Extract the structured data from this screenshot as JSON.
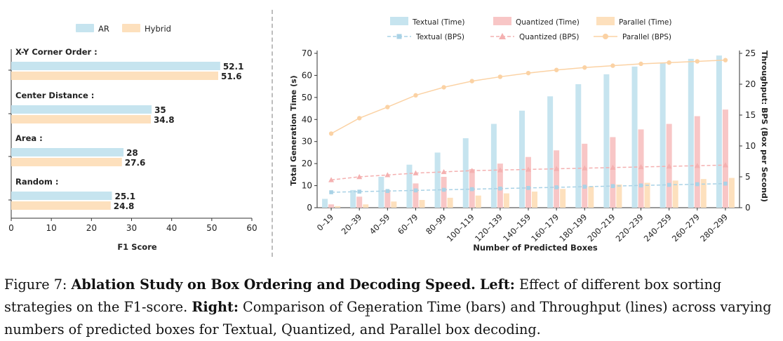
{
  "chart_data": [
    {
      "type": "bar",
      "orientation": "horizontal",
      "categories": [
        "X-Y Corner Order :",
        "Center Distance :",
        "Area :",
        "Random :"
      ],
      "series": [
        {
          "name": "AR",
          "values": [
            52.1,
            35,
            28,
            25.1
          ],
          "color": "#c6e4ef"
        },
        {
          "name": "Hybrid",
          "values": [
            51.6,
            34.8,
            27.6,
            24.8
          ],
          "color": "#fde0bd"
        }
      ],
      "value_labels": [
        [
          "52.1",
          "35",
          "28",
          "25.1"
        ],
        [
          "51.6",
          "34.8",
          "27.6",
          "24.8"
        ]
      ],
      "xlabel": "F1 Score",
      "xticks": [
        "0",
        "10",
        "20",
        "30",
        "40",
        "50",
        "60"
      ],
      "xlim": [
        0,
        60
      ],
      "legend": "top-center",
      "grid": false
    },
    {
      "type": "bar+line",
      "categories": [
        "0–19",
        "20–39",
        "40–59",
        "60–79",
        "80–99",
        "100–119",
        "120–139",
        "140–159",
        "160–179",
        "180–199",
        "200–219",
        "220–239",
        "240–259",
        "260–279",
        "280–299"
      ],
      "bar_series": [
        {
          "name": "Textual (Time)",
          "values": [
            4,
            8,
            14,
            19.5,
            25,
            31.5,
            38,
            44,
            50.5,
            56,
            60.5,
            64,
            65.5,
            67.5,
            69
          ],
          "color": "#c6e4ef"
        },
        {
          "name": "Quantized (Time)",
          "values": [
            1.5,
            5,
            8,
            11,
            14,
            17.5,
            20,
            23,
            26,
            29,
            32,
            35.5,
            38,
            41.5,
            44.5
          ],
          "color": "#f8c6c6"
        },
        {
          "name": "Parallel (Time)",
          "values": [
            0.7,
            1.5,
            2.8,
            3.5,
            4.5,
            5.5,
            6.5,
            7.3,
            8.5,
            9.7,
            10.5,
            11.3,
            12.3,
            13,
            13.5
          ],
          "color": "#fde0bd"
        }
      ],
      "line_series": [
        {
          "name": "Textual (BPS)",
          "marker": "square",
          "values": [
            2.5,
            2.6,
            2.7,
            2.8,
            2.9,
            3.0,
            3.1,
            3.2,
            3.3,
            3.4,
            3.5,
            3.6,
            3.7,
            3.8,
            3.9
          ],
          "color": "#a9d2e6"
        },
        {
          "name": "Quantized (BPS)",
          "marker": "triangle",
          "values": [
            4.5,
            5.0,
            5.3,
            5.6,
            5.8,
            6.0,
            6.1,
            6.2,
            6.3,
            6.4,
            6.5,
            6.6,
            6.7,
            6.8,
            6.9
          ],
          "color": "#f4b0b0"
        },
        {
          "name": "Parallel (BPS)",
          "marker": "circle",
          "values": [
            12,
            14.5,
            16.3,
            18.2,
            19.5,
            20.5,
            21.2,
            21.8,
            22.3,
            22.7,
            23.0,
            23.3,
            23.5,
            23.7,
            23.9
          ],
          "color": "#fbd2a4"
        }
      ],
      "xlabel": "Number of Predicted Boxes",
      "ylabel": "Total Generation Time (s)",
      "y2label": "Throughput: BPS (Box per Second)",
      "ylim": [
        0,
        70
      ],
      "y2lim": [
        0,
        25
      ],
      "yticks": [
        "0",
        "10",
        "20",
        "30",
        "40",
        "50",
        "60",
        "70"
      ],
      "y2ticks": [
        "0",
        "5",
        "10",
        "15",
        "20",
        "25"
      ],
      "legend": "top",
      "grid": false
    }
  ],
  "caption": {
    "figure_label": "Figure 7: ",
    "title": "Ablation Study on Box Ordering and Decoding Speed.",
    "left_label": "Left:",
    "left_text": " Effect of different box sorting strategies on the F1-score. ",
    "right_label": "Right:",
    "right_text": " Comparison of Generation Time (bars) and Throughput (lines) across varying numbers of predicted boxes for Textual, Quantized, and Parallel box decoding."
  }
}
